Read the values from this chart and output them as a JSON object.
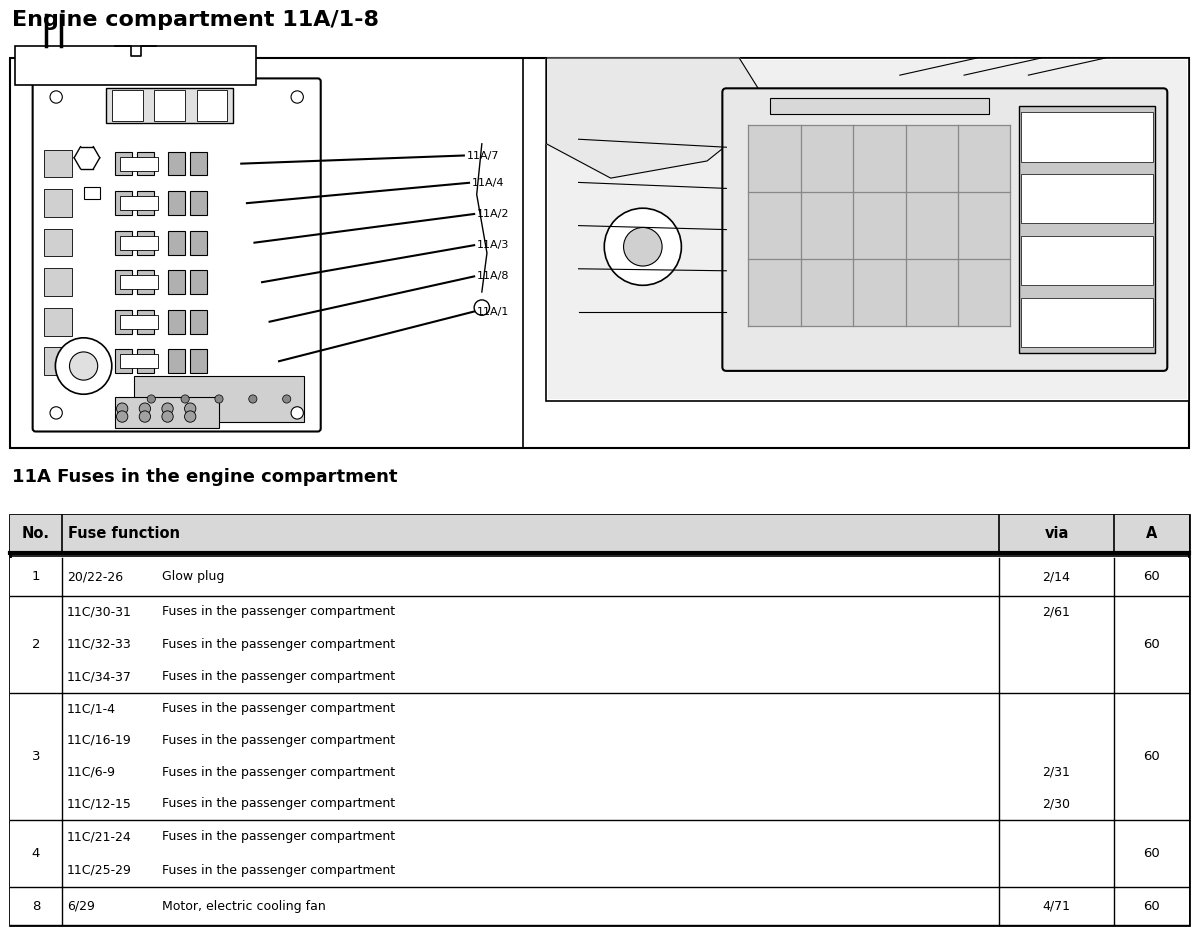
{
  "title": "Engine compartment 11A/1-8",
  "table_title": "11A Fuses in the engine compartment",
  "bg_color": "#ffffff",
  "title_fontsize": 16,
  "table_title_fontsize": 13,
  "fuse_labels": [
    "11A/7",
    "11A/4",
    "11A/2",
    "11A/3",
    "11A/8",
    "11A/1"
  ],
  "table_rows": [
    {
      "no": "1",
      "codes": [
        "20/22-26"
      ],
      "funcs": [
        "Glow plug"
      ],
      "via_lines": [
        [
          "2/14"
        ]
      ],
      "amp": "60"
    },
    {
      "no": "2",
      "codes": [
        "11C/30-31",
        "11C/32-33",
        "11C/34-37"
      ],
      "funcs": [
        "Fuses in the passenger compartment",
        "Fuses in the passenger compartment",
        "Fuses in the passenger compartment"
      ],
      "via_lines": [
        [
          "2/61"
        ],
        [
          ""
        ],
        [
          ""
        ]
      ],
      "amp": "60"
    },
    {
      "no": "3",
      "codes": [
        "11C/1-4",
        "11C/16-19",
        "11C/6-9",
        "11C/12-15"
      ],
      "funcs": [
        "Fuses in the passenger compartment",
        "Fuses in the passenger compartment",
        "Fuses in the passenger compartment",
        "Fuses in the passenger compartment"
      ],
      "via_lines": [
        [
          ""
        ],
        [
          ""
        ],
        [
          "2/31"
        ],
        [
          "2/30"
        ]
      ],
      "amp": "60"
    },
    {
      "no": "4",
      "codes": [
        "11C/21-24",
        "11C/25-29"
      ],
      "funcs": [
        "Fuses in the passenger compartment",
        "Fuses in the passenger compartment"
      ],
      "via_lines": [
        [
          ""
        ],
        [
          ""
        ]
      ],
      "amp": "60"
    },
    {
      "no": "8",
      "codes": [
        "6/29"
      ],
      "funcs": [
        "Motor, electric cooling fan"
      ],
      "via_lines": [
        [
          "4/71"
        ]
      ],
      "amp": "60"
    }
  ]
}
